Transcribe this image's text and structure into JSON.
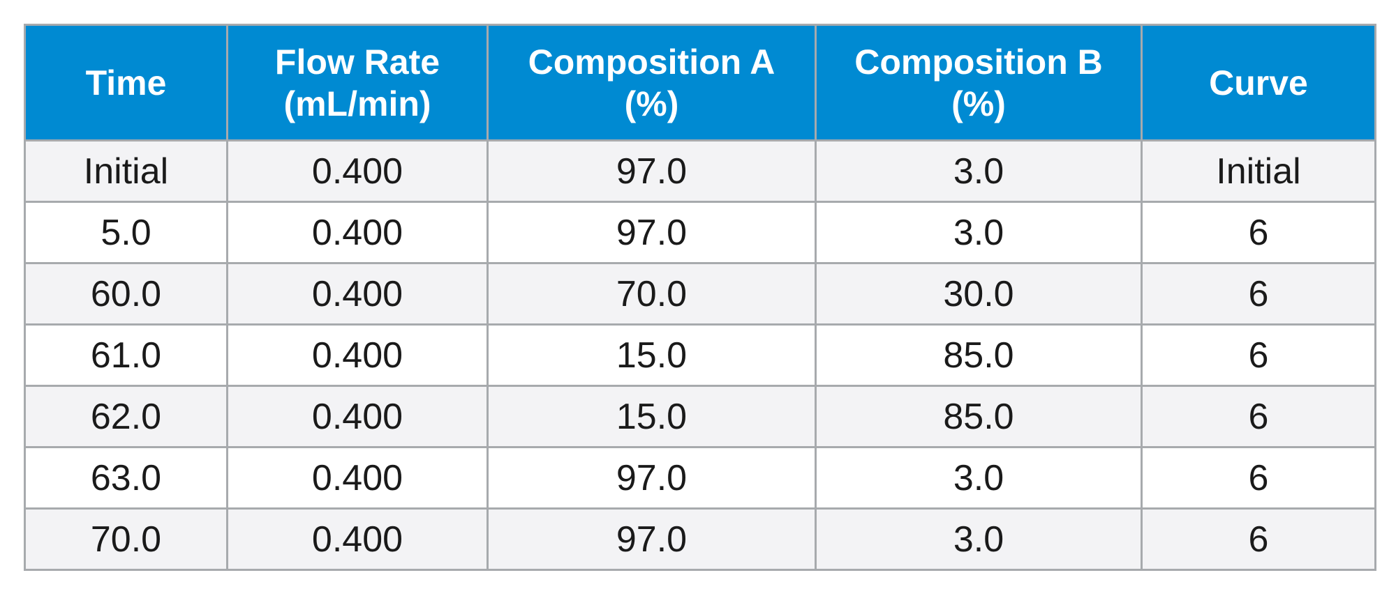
{
  "table": {
    "colors": {
      "header_bg": "#008ad2",
      "header_text": "#ffffff",
      "stripe_bg": "#f3f3f5",
      "border": "#a7aaad"
    },
    "headers": [
      [
        "Time"
      ],
      [
        "Flow Rate",
        "(mL/min)"
      ],
      [
        "Composition A",
        "(%)"
      ],
      [
        "Composition B",
        "(%)"
      ],
      [
        "Curve"
      ]
    ],
    "rows": [
      [
        "Initial",
        "0.400",
        "97.0",
        "3.0",
        "Initial"
      ],
      [
        "5.0",
        "0.400",
        "97.0",
        "3.0",
        "6"
      ],
      [
        "60.0",
        "0.400",
        "70.0",
        "30.0",
        "6"
      ],
      [
        "61.0",
        "0.400",
        "15.0",
        "85.0",
        "6"
      ],
      [
        "62.0",
        "0.400",
        "15.0",
        "85.0",
        "6"
      ],
      [
        "63.0",
        "0.400",
        "97.0",
        "3.0",
        "6"
      ],
      [
        "70.0",
        "0.400",
        "97.0",
        "3.0",
        "6"
      ]
    ]
  }
}
